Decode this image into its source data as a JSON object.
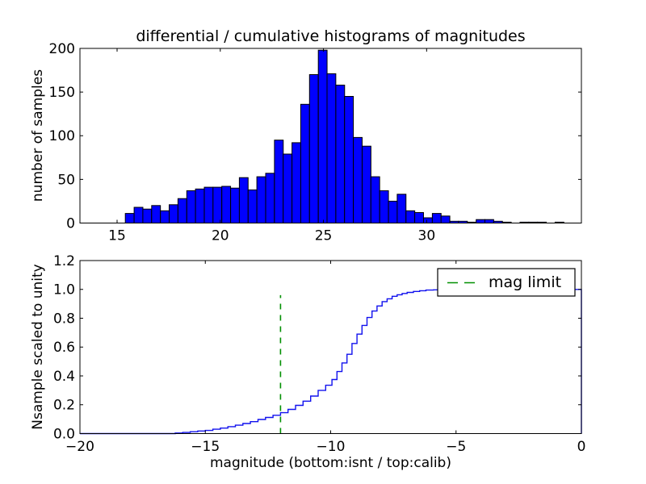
{
  "colors": {
    "bar_fill": "#0000ff",
    "bar_edge": "#000000",
    "cumulative_line": "#1111ee",
    "mag_limit_line": "#009000",
    "axis": "#000000",
    "background": "#ffffff",
    "legend_background": "#ffffff"
  },
  "chart_data": [
    {
      "type": "bar",
      "subplot": "top (differential histogram)",
      "title": "differential / cumulative histograms of magnitudes",
      "xlabel": "",
      "ylabel": "number of samples",
      "xlim": [
        13.2,
        37.5
      ],
      "ylim": [
        0,
        200
      ],
      "xticks": [
        15,
        20,
        25,
        30
      ],
      "xtick_labels": [
        "15",
        "20",
        "25",
        "30"
      ],
      "yticks": [
        0,
        50,
        100,
        150,
        200
      ],
      "ytick_labels": [
        "0",
        "50",
        "100",
        "150",
        "200"
      ],
      "grid": false,
      "bin_start": 15.4,
      "bin_width": 0.425,
      "values": [
        11,
        18,
        16,
        20,
        14,
        21,
        28,
        37,
        39,
        41,
        41,
        42,
        40,
        52,
        38,
        53,
        57,
        95,
        79,
        92,
        136,
        170,
        198,
        171,
        158,
        145,
        98,
        88,
        53,
        37,
        25,
        33,
        14,
        12,
        6,
        11,
        8,
        2,
        2,
        1,
        4,
        4,
        2,
        1,
        0,
        1,
        1,
        1,
        0,
        1
      ]
    },
    {
      "type": "line",
      "subplot": "bottom (cumulative histogram)",
      "style": "steps",
      "xlabel": "magnitude (bottom:isnt / top:calib)",
      "ylabel": "Nsample scaled to unity",
      "xlim": [
        -20,
        0
      ],
      "ylim": [
        0,
        1.2
      ],
      "xticks": [
        -20,
        -15,
        -10,
        -5,
        0
      ],
      "xtick_labels": [
        "−20",
        "−15",
        "−10",
        "−5",
        "0"
      ],
      "yticks": [
        0,
        0.2,
        0.4,
        0.6,
        0.8,
        1.0,
        1.2
      ],
      "ytick_labels": [
        "0.0",
        "0.2",
        "0.4",
        "0.6",
        "0.8",
        "1.0",
        "1.2"
      ],
      "grid": false,
      "legend": {
        "label": "mag limit",
        "position": "upper right"
      },
      "series": [
        {
          "name": "cumulative histogram scaled to unity",
          "type": "step",
          "points": [
            [
              -20,
              0
            ],
            [
              -16.5,
              0
            ],
            [
              -16.2,
              0.004
            ],
            [
              -15.9,
              0.008
            ],
            [
              -15.6,
              0.013
            ],
            [
              -15.3,
              0.018
            ],
            [
              -15,
              0.022
            ],
            [
              -14.7,
              0.03
            ],
            [
              -14.4,
              0.038
            ],
            [
              -14.1,
              0.048
            ],
            [
              -13.8,
              0.058
            ],
            [
              -13.5,
              0.07
            ],
            [
              -13.2,
              0.083
            ],
            [
              -12.9,
              0.098
            ],
            [
              -12.6,
              0.112
            ],
            [
              -12.3,
              0.127
            ],
            [
              -12,
              0.145
            ],
            [
              -11.7,
              0.168
            ],
            [
              -11.4,
              0.196
            ],
            [
              -11.1,
              0.225
            ],
            [
              -10.8,
              0.26
            ],
            [
              -10.5,
              0.3
            ],
            [
              -10.2,
              0.335
            ],
            [
              -9.95,
              0.375
            ],
            [
              -9.75,
              0.43
            ],
            [
              -9.55,
              0.49
            ],
            [
              -9.35,
              0.55
            ],
            [
              -9.15,
              0.625
            ],
            [
              -8.95,
              0.69
            ],
            [
              -8.75,
              0.75
            ],
            [
              -8.55,
              0.805
            ],
            [
              -8.35,
              0.85
            ],
            [
              -8.15,
              0.885
            ],
            [
              -7.95,
              0.915
            ],
            [
              -7.75,
              0.935
            ],
            [
              -7.55,
              0.952
            ],
            [
              -7.35,
              0.963
            ],
            [
              -7.15,
              0.972
            ],
            [
              -6.95,
              0.979
            ],
            [
              -6.7,
              0.986
            ],
            [
              -6.45,
              0.991
            ],
            [
              -6.2,
              0.995
            ],
            [
              -5.9,
              0.997
            ],
            [
              -5.5,
              0.999
            ],
            [
              -5,
              1.0
            ],
            [
              0,
              1.0
            ],
            [
              0,
              0
            ]
          ]
        },
        {
          "name": "mag limit",
          "type": "vline",
          "linestyle": "dashed",
          "x": -12,
          "y": [
            0,
            0.96
          ]
        }
      ]
    }
  ]
}
